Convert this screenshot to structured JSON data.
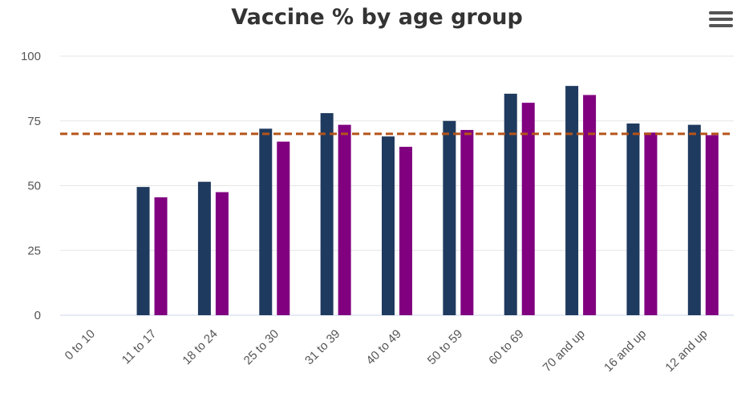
{
  "chart_data": {
    "type": "bar",
    "title": "Vaccine % by age group",
    "xlabel": "",
    "ylabel": "",
    "ylim": [
      0,
      100
    ],
    "yticks": [
      0,
      25,
      50,
      75,
      100
    ],
    "grid": true,
    "legend": "none",
    "categories": [
      "0 to 10",
      "11 to 17",
      "18 to 24",
      "25 to 30",
      "31 to 39",
      "40 to 49",
      "50 to 59",
      "60 to 69",
      "70 and up",
      "16 and up",
      "12 and up"
    ],
    "series": [
      {
        "color": "#1f3a5f",
        "values": [
          0,
          49.5,
          51.5,
          72,
          78,
          69,
          75,
          85.5,
          88.5,
          74,
          73.5
        ]
      },
      {
        "color": "#800080",
        "values": [
          0,
          45.5,
          47.5,
          67,
          73.5,
          65,
          71.5,
          82,
          85,
          70.5,
          69.5
        ]
      }
    ],
    "reference_line": {
      "value": 70,
      "color": "#b5541a",
      "style": "dashed"
    }
  },
  "menu": {
    "icon": "hamburger-menu-icon"
  }
}
